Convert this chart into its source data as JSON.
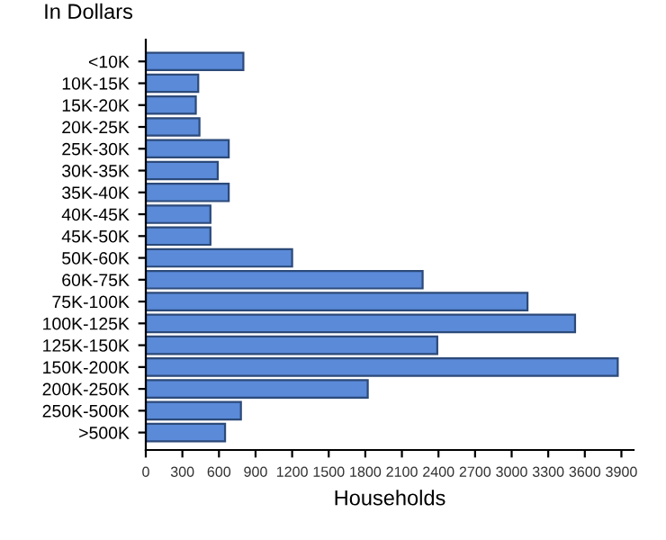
{
  "chart_data": {
    "type": "bar",
    "orientation": "horizontal",
    "ylabel": "In Dollars",
    "xlabel": "Households",
    "categories": [
      "<10K",
      "10K-15K",
      "15K-20K",
      "20K-25K",
      "25K-30K",
      "30K-35K",
      "35K-40K",
      "40K-45K",
      "45K-50K",
      "50K-60K",
      "60K-75K",
      "75K-100K",
      "100K-125K",
      "125K-150K",
      "150K-200K",
      "200K-250K",
      "250K-500K",
      ">500K"
    ],
    "values": [
      800,
      430,
      410,
      440,
      680,
      590,
      680,
      530,
      530,
      1200,
      2270,
      3130,
      3520,
      2390,
      3870,
      1820,
      780,
      650
    ],
    "color": "#5a8ad8",
    "xlim": [
      0,
      4000
    ],
    "xticks": [
      0,
      300,
      600,
      900,
      1200,
      1500,
      1800,
      2100,
      2400,
      2700,
      3000,
      3300,
      3600,
      3900
    ],
    "grid": false,
    "legend": false
  }
}
